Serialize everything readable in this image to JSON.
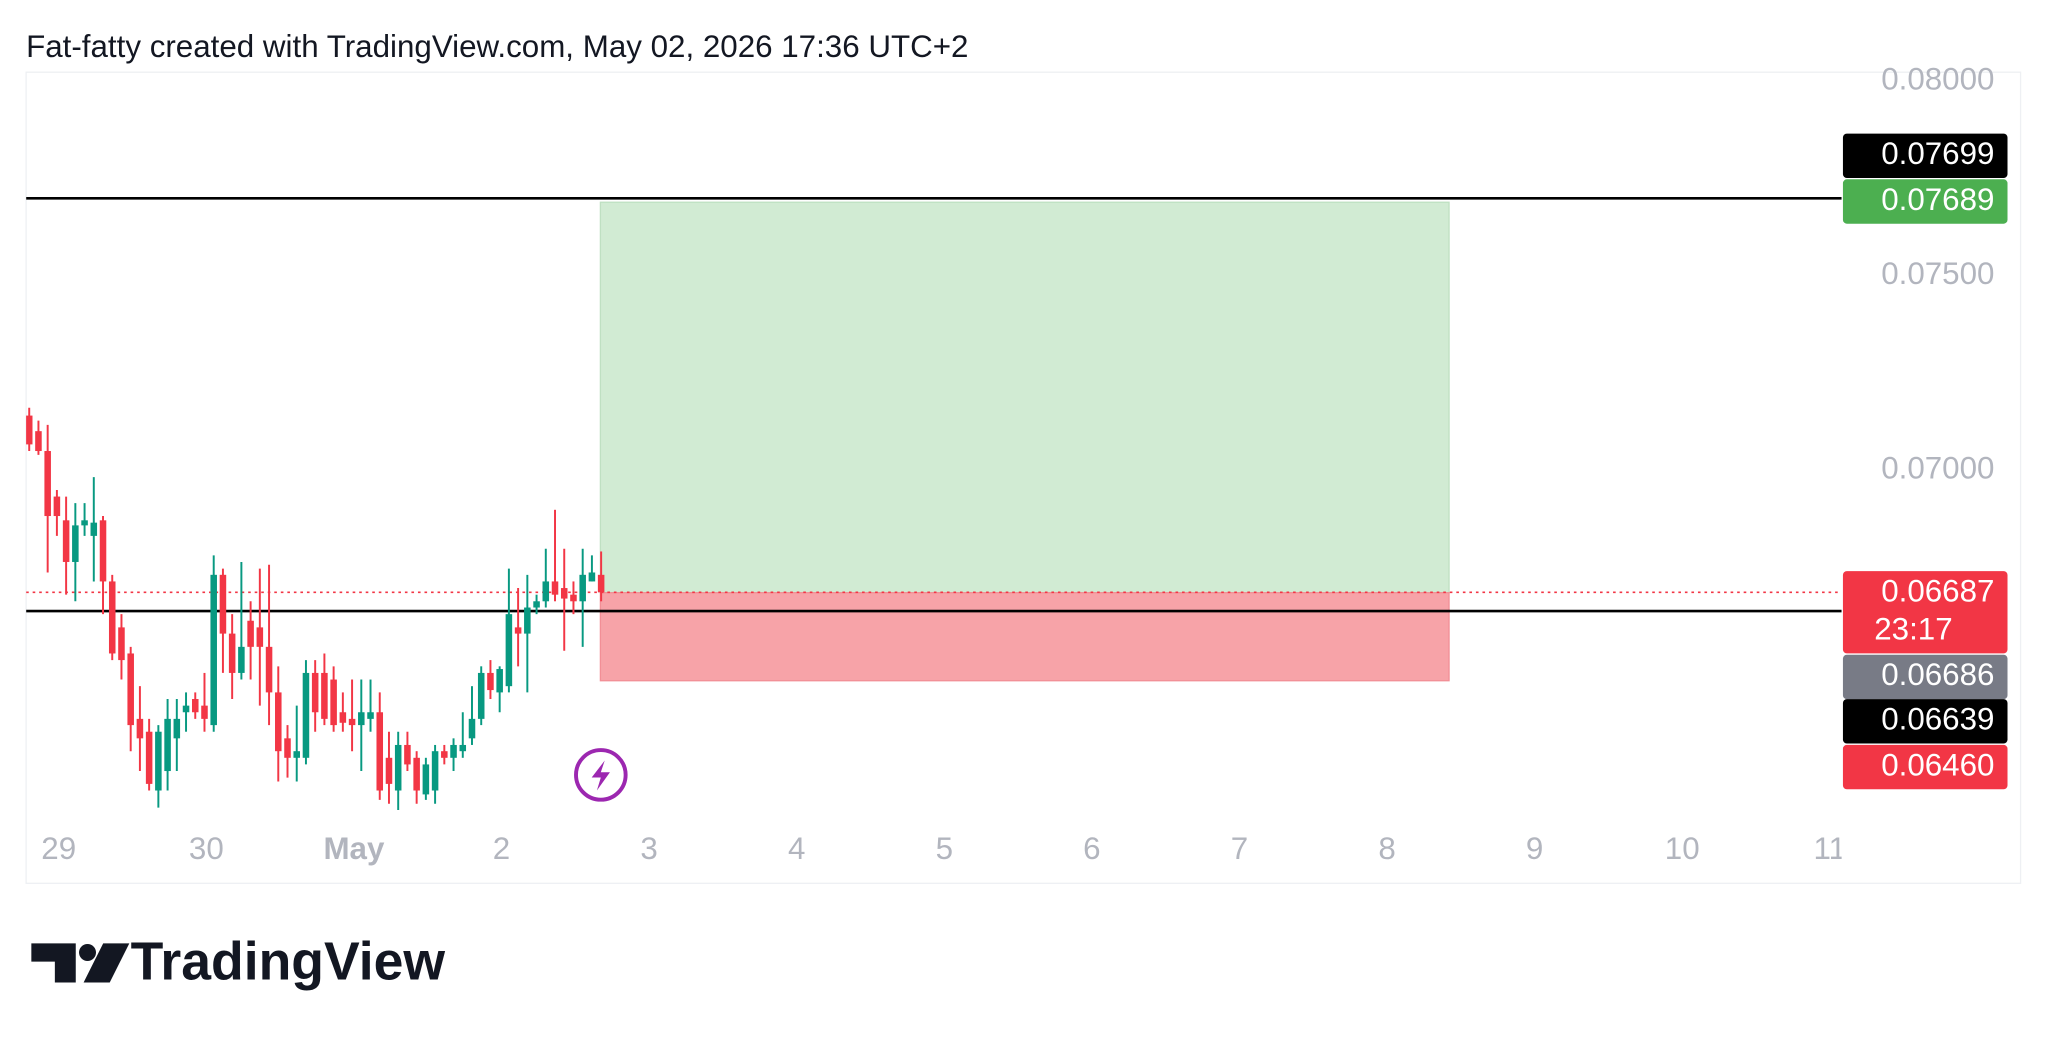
{
  "chart_data": {
    "type": "candlestick",
    "title": "Fat-fatty created with TradingView.com, May 02, 2026 17:36 UTC+2",
    "logo_text": "TradingView",
    "up_color": "#089981",
    "down_color": "#f23645",
    "x": [
      -0.2,
      -0.1375,
      -0.075,
      -0.0125,
      0.05,
      0.1125,
      0.175,
      0.2375,
      0.3,
      0.3625,
      0.425,
      0.4875,
      0.55,
      0.6125,
      0.675,
      0.7375,
      0.8,
      0.8625,
      0.925,
      0.9875,
      1.05,
      1.1125,
      1.175,
      1.2375,
      1.3,
      1.3625,
      1.425,
      1.4875,
      1.55,
      1.6125,
      1.675,
      1.7375,
      1.8,
      1.8625,
      1.925,
      1.9875,
      2.05,
      2.1125,
      2.175,
      2.2375,
      2.3,
      2.3625,
      2.425,
      2.4875,
      2.55,
      2.6125,
      2.675,
      2.7375,
      2.8,
      2.8625,
      2.925,
      2.9875,
      3.05,
      3.1125,
      3.175,
      3.2375,
      3.3,
      3.3625,
      3.425,
      3.4875,
      3.55,
      3.6125,
      3.675
    ],
    "open": [
      0.07141,
      0.07101,
      0.0705,
      0.06933,
      0.06872,
      0.06765,
      0.06859,
      0.06832,
      0.06872,
      0.06715,
      0.06597,
      0.0653,
      0.06362,
      0.06329,
      0.06178,
      0.06228,
      0.06312,
      0.06379,
      0.06413,
      0.06396,
      0.06346,
      0.06732,
      0.06581,
      0.0648,
      0.06614,
      0.06597,
      0.06547,
      0.0643,
      0.06312,
      0.06262,
      0.06262,
      0.0648,
      0.0648,
      0.06463,
      0.06379,
      0.06362,
      0.06346,
      0.06362,
      0.06379,
      0.06262,
      0.06178,
      0.06295,
      0.06262,
      0.06168,
      0.06178,
      0.06279,
      0.06262,
      0.06279,
      0.06312,
      0.06362,
      0.0648,
      0.0643,
      0.06446,
      0.06597,
      0.06581,
      0.06648,
      0.06664,
      0.06715,
      0.06698,
      0.06681,
      0.06664,
      0.06715,
      0.06732
    ],
    "high": [
      0.07161,
      0.07128,
      0.07117,
      0.0695,
      0.06933,
      0.06916,
      0.06916,
      0.06983,
      0.06883,
      0.06732,
      0.06631,
      0.06547,
      0.06446,
      0.06362,
      0.06346,
      0.06413,
      0.06413,
      0.0643,
      0.0643,
      0.0648,
      0.06782,
      0.06748,
      0.06631,
      0.06765,
      0.06664,
      0.06748,
      0.06758,
      0.06497,
      0.06346,
      0.06396,
      0.06513,
      0.06513,
      0.0653,
      0.06497,
      0.0643,
      0.06463,
      0.06463,
      0.06463,
      0.0643,
      0.06329,
      0.06329,
      0.06329,
      0.06279,
      0.06262,
      0.06295,
      0.06295,
      0.06312,
      0.06379,
      0.06446,
      0.06497,
      0.06513,
      0.06497,
      0.06748,
      0.06698,
      0.06732,
      0.06681,
      0.06799,
      0.06899,
      0.06799,
      0.06715,
      0.06799,
      0.06782,
      0.06792
    ],
    "low": [
      0.0705,
      0.0704,
      0.06738,
      0.06832,
      0.06681,
      0.06664,
      0.06832,
      0.06715,
      0.06631,
      0.06513,
      0.06463,
      0.06279,
      0.06228,
      0.06178,
      0.06134,
      0.06178,
      0.06228,
      0.06329,
      0.06362,
      0.06329,
      0.06329,
      0.0648,
      0.06413,
      0.06463,
      0.06463,
      0.06396,
      0.06346,
      0.06201,
      0.06211,
      0.06201,
      0.06245,
      0.06329,
      0.06346,
      0.06329,
      0.06329,
      0.06279,
      0.06228,
      0.06329,
      0.06154,
      0.06144,
      0.06128,
      0.06228,
      0.06144,
      0.06154,
      0.06144,
      0.06245,
      0.06228,
      0.06262,
      0.06295,
      0.06346,
      0.06413,
      0.06379,
      0.0643,
      0.06497,
      0.0643,
      0.06631,
      0.06648,
      0.06664,
      0.06537,
      0.06631,
      0.06547,
      0.06715,
      0.06664
    ],
    "close": [
      0.07067,
      0.0705,
      0.06883,
      0.06883,
      0.06765,
      0.06859,
      0.06872,
      0.06866,
      0.06715,
      0.0653,
      0.06513,
      0.06346,
      0.06312,
      0.06195,
      0.06329,
      0.06362,
      0.06362,
      0.06396,
      0.06379,
      0.06362,
      0.06732,
      0.06581,
      0.0648,
      0.06547,
      0.06547,
      0.06547,
      0.0643,
      0.06279,
      0.06262,
      0.06279,
      0.0648,
      0.06379,
      0.06362,
      0.06346,
      0.06352,
      0.06346,
      0.06379,
      0.06379,
      0.06178,
      0.06195,
      0.06295,
      0.06245,
      0.06178,
      0.06245,
      0.06279,
      0.06262,
      0.06295,
      0.06295,
      0.06362,
      0.0648,
      0.06436,
      0.0649,
      0.06631,
      0.06581,
      0.06648,
      0.06664,
      0.06715,
      0.06681,
      0.06671,
      0.06664,
      0.06732,
      0.06738,
      0.06687
    ],
    "xlim": [
      -0.221,
      12.08
    ],
    "xticks": [
      {
        "value": 0,
        "label": "29"
      },
      {
        "value": 1,
        "label": "30"
      },
      {
        "value": 2,
        "label": "May"
      },
      {
        "value": 3,
        "label": "2"
      },
      {
        "value": 4,
        "label": "3"
      },
      {
        "value": 5,
        "label": "4"
      },
      {
        "value": 6,
        "label": "5"
      },
      {
        "value": 7,
        "label": "6"
      },
      {
        "value": 8,
        "label": "7"
      },
      {
        "value": 9,
        "label": "8"
      },
      {
        "value": 10,
        "label": "9"
      },
      {
        "value": 11,
        "label": "10"
      },
      {
        "value": 12,
        "label": "11"
      }
    ],
    "ylim": [
      0.06094,
      0.08023
    ],
    "yticks": [
      {
        "value": 0.08,
        "label": "0.08000"
      },
      {
        "value": 0.075,
        "label": "0.07500"
      },
      {
        "value": 0.07,
        "label": "0.07000"
      }
    ],
    "hlines": [
      0.07699,
      0.06639
    ],
    "current_price": 0.06687,
    "position": {
      "entry": 0.06686,
      "target": 0.07689,
      "stop": 0.0646,
      "x_start": 3.67,
      "x_end": 9.42,
      "profit_color": "#d1ebd3",
      "loss_color": "#f7a3a8"
    },
    "price_labels": [
      {
        "value": 0.07699,
        "label": "0.07699",
        "color": "#000000"
      },
      {
        "value": 0.07689,
        "label": "0.07689",
        "color": "#4caf50"
      },
      {
        "value": 0.06687,
        "label": "0.06687",
        "countdown": "23:17",
        "color": "#f23645"
      },
      {
        "value": 0.06686,
        "label": "0.06686",
        "color": "#787b86"
      },
      {
        "value": 0.06639,
        "label": "0.06639",
        "color": "#000000"
      },
      {
        "value": 0.0646,
        "label": "0.06460",
        "color": "#f23645"
      }
    ]
  }
}
